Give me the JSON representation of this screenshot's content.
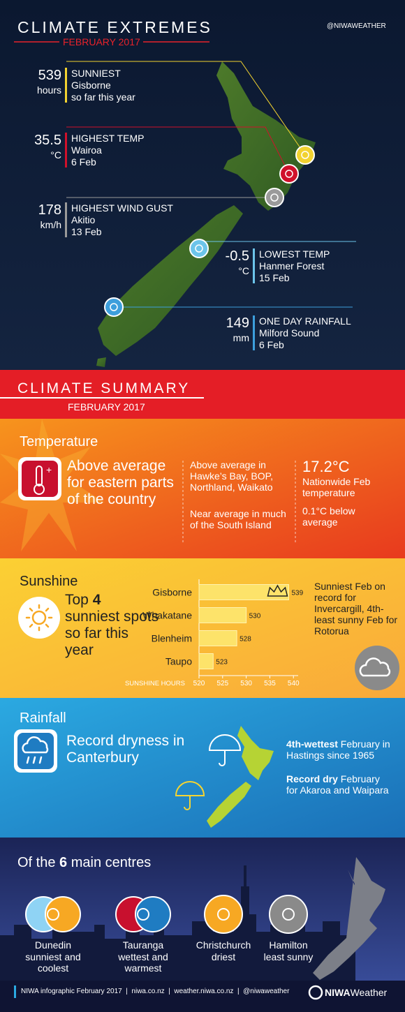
{
  "header": {
    "title": "CLIMATE EXTREMES",
    "subtitle": "FEBRUARY 2017",
    "handle": "@NIWAWEATHER"
  },
  "extremes": [
    {
      "value": "539",
      "unit": "hours",
      "label": "SUNNIEST",
      "place": "Gisborne",
      "date": "so far this year",
      "color": "#f2d230"
    },
    {
      "value": "35.5",
      "unit": "°C",
      "label": "HIGHEST TEMP",
      "place": "Wairoa",
      "date": "6 Feb",
      "color": "#d0112b"
    },
    {
      "value": "178",
      "unit": "km/h",
      "label": "HIGHEST WIND GUST",
      "place": "Akitio",
      "date": "13 Feb",
      "color": "#9a9a9a"
    },
    {
      "value": "-0.5",
      "unit": "°C",
      "label": "LOWEST TEMP",
      "place": "Hanmer Forest",
      "date": "15 Feb",
      "color": "#6cc4ea"
    },
    {
      "value": "149",
      "unit": "mm",
      "label": "ONE DAY RAINFALL",
      "place": "Milford  Sound",
      "date": "6 Feb",
      "color": "#3d9fdc"
    }
  ],
  "summary": {
    "title": "CLIMATE SUMMARY",
    "subtitle": "FEBRUARY 2017"
  },
  "temperature": {
    "heading": "Temperature",
    "headline": "Above average for eastern parts of the country",
    "notes": [
      "Above average in Hawke’s Bay, BOP, Northland, Waikato",
      "Near average in much of the South Island"
    ],
    "stat": "17.2°C",
    "stat_label": "Nationwide Feb temperature",
    "stat_note": "0.1°C below average"
  },
  "sunshine": {
    "heading": "Sunshine",
    "headline_pre": "Top ",
    "headline_num": "4",
    "headline_post": " sunniest spots so far this year",
    "note": "Sunniest Feb on record for Invercargill, 4th-least sunny Feb for Rotorua"
  },
  "chart_data": {
    "type": "bar",
    "orientation": "horizontal",
    "categories": [
      "Gisborne",
      "Whakatane",
      "Blenheim",
      "Taupo"
    ],
    "values": [
      539,
      530,
      528,
      523
    ],
    "xlim": [
      520,
      541
    ],
    "xticks": [
      520,
      525,
      530,
      535,
      540
    ],
    "xlabel": "SUNSHINE HOURS",
    "color": "#fde36a"
  },
  "rainfall": {
    "heading": "Rainfall",
    "headline": "Record dryness in Canterbury",
    "notes": [
      {
        "bold": "4th-wettest",
        "text": " February in Hastings since 1965"
      },
      {
        "bold": "Record dry",
        "text": " February for Akaroa and Waipara"
      }
    ]
  },
  "centres": {
    "heading_pre": "Of the ",
    "heading_num": "6",
    "heading_post": " main centres",
    "items": [
      {
        "city": "Dunedin",
        "desc": "sunniest and coolest"
      },
      {
        "city": "Tauranga",
        "desc": "wettest and warmest"
      },
      {
        "city": "Christchurch",
        "desc": "driest"
      },
      {
        "city": "Hamilton",
        "desc": "least sunny"
      }
    ]
  },
  "footer": {
    "text": "NIWA infographic February 2017  |  niwa.co.nz  |  weather.niwa.co.nz  |  @niwaweather",
    "brand": "NIWA",
    "brand2": "Weather"
  }
}
